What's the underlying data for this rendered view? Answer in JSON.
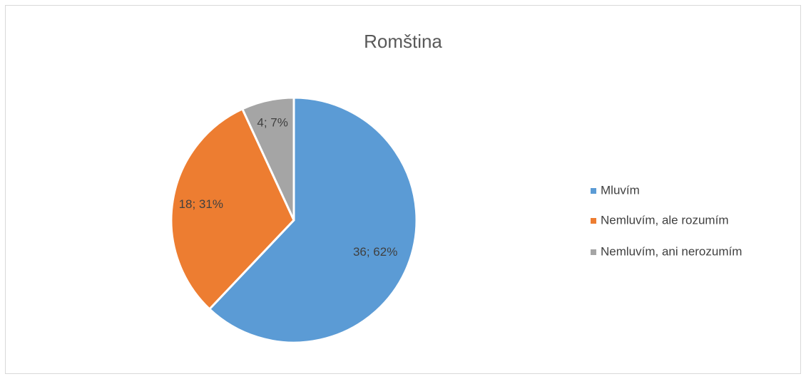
{
  "chart_data": {
    "type": "pie",
    "title": "Romština",
    "categories": [
      "Mluvím",
      "Nemluvím, ale rozumím",
      "Nemluvím, ani nerozumím"
    ],
    "values": [
      36,
      18,
      4
    ],
    "value_labels": [
      "36; 62%",
      "18; 31%",
      "4; 7%"
    ],
    "colors": [
      "#5b9bd5",
      "#ed7d31",
      "#a5a5a5"
    ],
    "legend": "right"
  }
}
